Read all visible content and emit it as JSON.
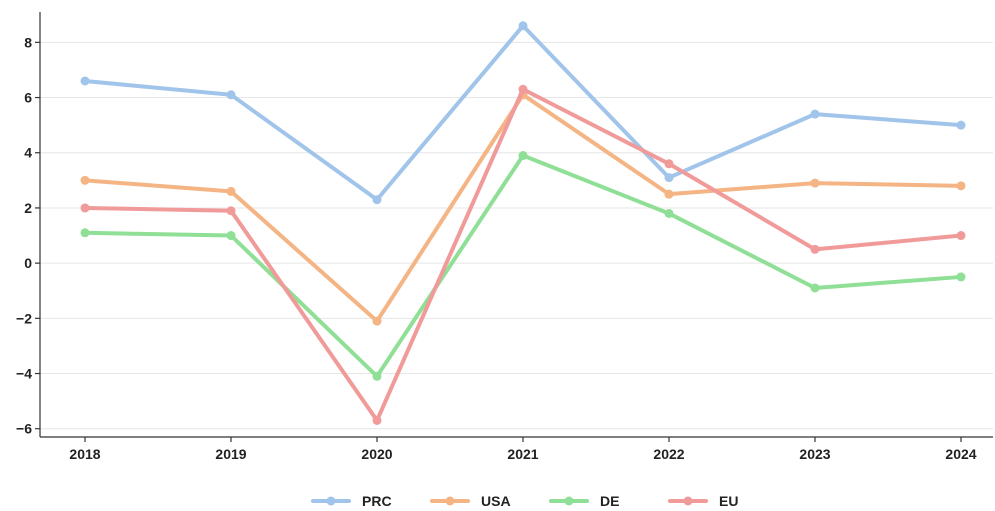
{
  "chart_data": {
    "type": "line",
    "x": [
      "2018",
      "2019",
      "2020",
      "2021",
      "2022",
      "2023",
      "2024"
    ],
    "series": [
      {
        "name": "PRC",
        "color": "#a1c4ea",
        "values": [
          6.6,
          6.1,
          2.3,
          8.6,
          3.1,
          5.4,
          5.0
        ]
      },
      {
        "name": "USA",
        "color": "#f4b483",
        "values": [
          3.0,
          2.6,
          -2.1,
          6.1,
          2.5,
          2.9,
          2.8
        ]
      },
      {
        "name": "DE",
        "color": "#8fdf96",
        "values": [
          1.1,
          1.0,
          -4.1,
          3.9,
          1.8,
          -0.9,
          -0.5
        ]
      },
      {
        "name": "EU",
        "color": "#f19a9a",
        "values": [
          2.0,
          1.9,
          -5.7,
          6.3,
          3.6,
          0.5,
          1.0
        ]
      }
    ],
    "yticks": [
      -6,
      -4,
      -2,
      0,
      2,
      4,
      6,
      8
    ],
    "ylim": [
      -6.3,
      9.1
    ],
    "title": "",
    "xlabel": "",
    "ylabel": "",
    "grid": "horizontal",
    "legend": "bottom-center"
  }
}
